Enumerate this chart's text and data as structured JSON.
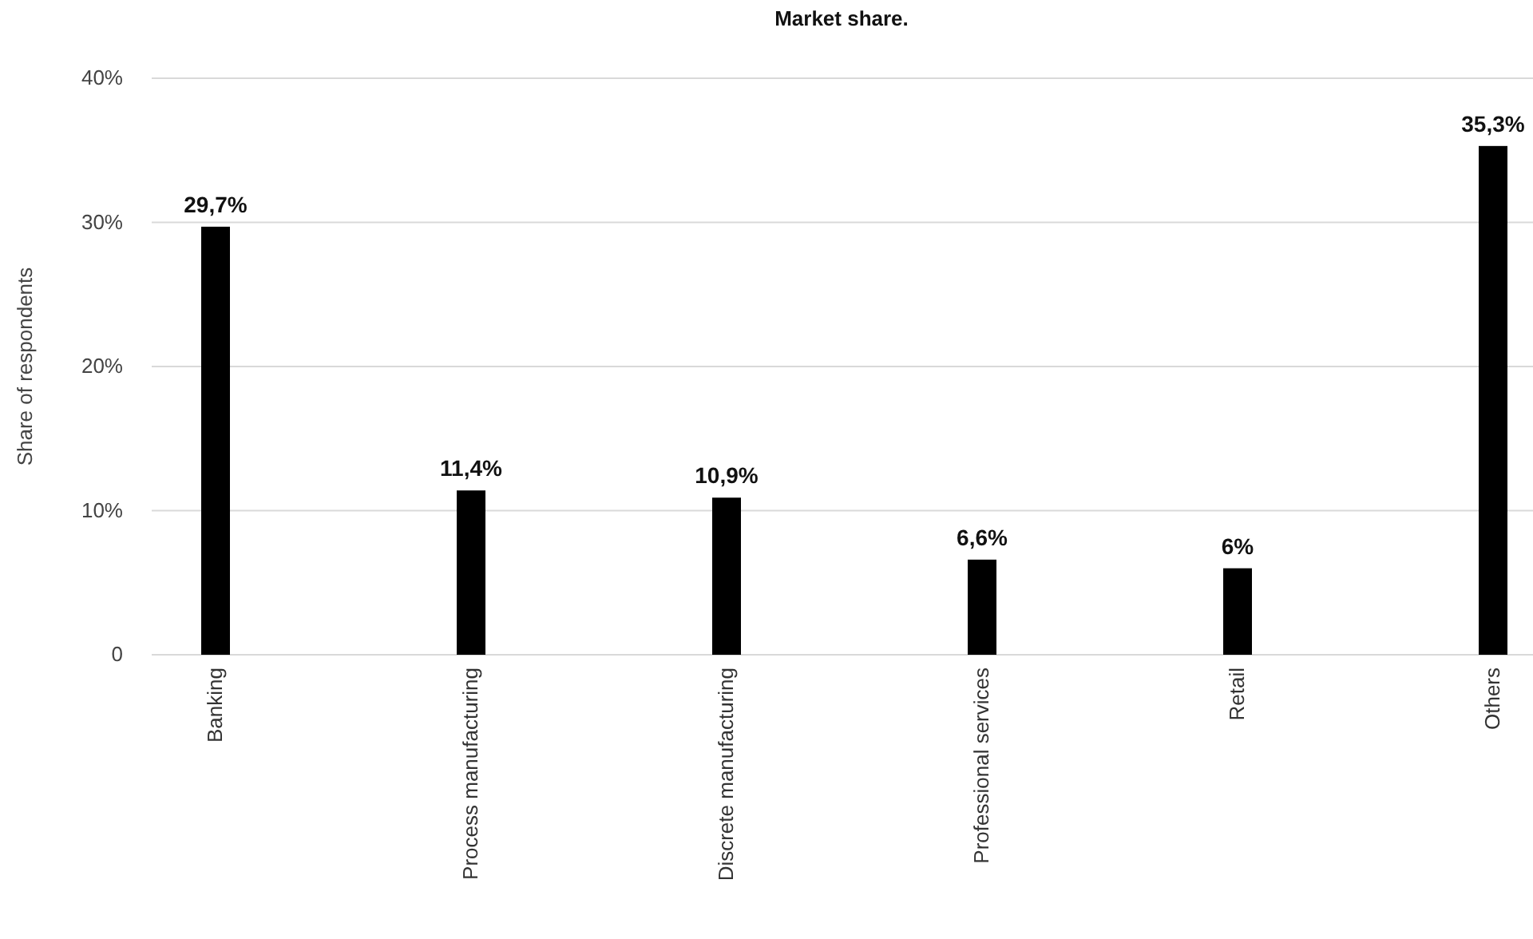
{
  "chart_data": {
    "type": "bar",
    "title": "Market share.",
    "ylabel": "Share of respondents",
    "categories": [
      "Banking",
      "Process manufacturing",
      "Discrete manufacturing",
      "Professional services",
      "Retail",
      "Others"
    ],
    "values": [
      29.7,
      11.4,
      10.9,
      6.6,
      6,
      35.3
    ],
    "value_labels": [
      "29,7%",
      "11,4%",
      "10,9%",
      "6,6%",
      "6%",
      "35,3%"
    ],
    "color": "#000000",
    "ylim": [
      0,
      40
    ],
    "yticks": [
      {
        "value": 0,
        "label": "0"
      },
      {
        "value": 10,
        "label": "10%"
      },
      {
        "value": 20,
        "label": "20%"
      },
      {
        "value": 30,
        "label": "30%"
      },
      {
        "value": 40,
        "label": "40%"
      }
    ],
    "grid": "y"
  }
}
